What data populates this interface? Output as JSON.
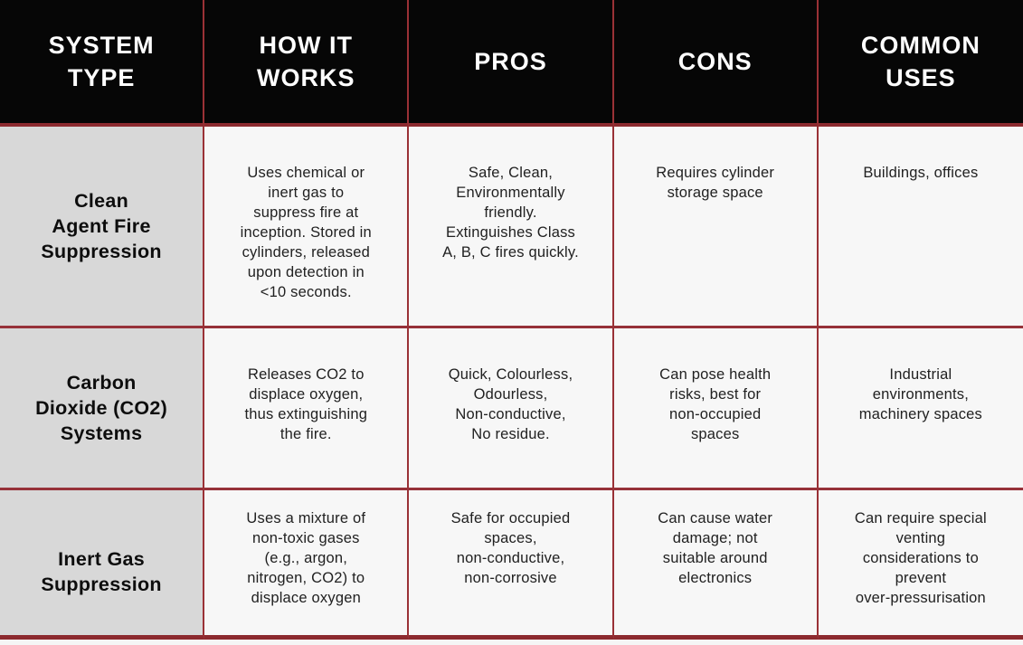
{
  "table": {
    "title_semantic": "Fire suppression system comparison table",
    "header": {
      "cells": [
        "SYSTEM\nTYPE",
        "HOW IT\nWORKS",
        "PROS",
        "CONS",
        "COMMON\nUSES"
      ]
    },
    "rows": [
      {
        "cells": [
          "Clean\nAgent Fire\nSuppression",
          "Uses chemical or\ninert gas to\nsuppress fire at\ninception. Stored in\ncylinders, released\nupon detection in\n<10 seconds.",
          "Safe, Clean,\nEnvironmentally\nfriendly.\nExtinguishes Class\nA, B, C fires quickly.",
          "Requires cylinder\nstorage space",
          "Buildings, offices"
        ]
      },
      {
        "cells": [
          "Carbon\nDioxide (CO2)\nSystems",
          "Releases CO2 to\ndisplace oxygen,\nthus extinguishing\nthe fire.",
          "Quick, Colourless,\nOdourless,\nNon-conductive,\nNo residue.",
          "Can pose health\nrisks, best for\nnon-occupied\nspaces",
          "Industrial\nenvironments,\nmachinery spaces"
        ]
      },
      {
        "cells": [
          "Inert Gas\nSuppression",
          "Uses a mixture of\nnon-toxic gases\n(e.g., argon,\nnitrogen, CO2) to\ndisplace oxygen",
          "Safe for occupied\nspaces,\nnon-conductive,\nnon-corrosive",
          "Can cause water\ndamage; not\nsuitable around\nelectronics",
          "Can require special\nventing\nconsiderations to\nprevent\nover-pressurisation"
        ]
      }
    ],
    "colors": {
      "header_bg": "#060606",
      "header_text": "#ffffff",
      "type_column_bg": "#d8d8d8",
      "cell_bg": "#f7f7f7",
      "border_thin": "#9a3136",
      "border_thick": "#8c2a2f",
      "body_text": "#212121"
    }
  }
}
